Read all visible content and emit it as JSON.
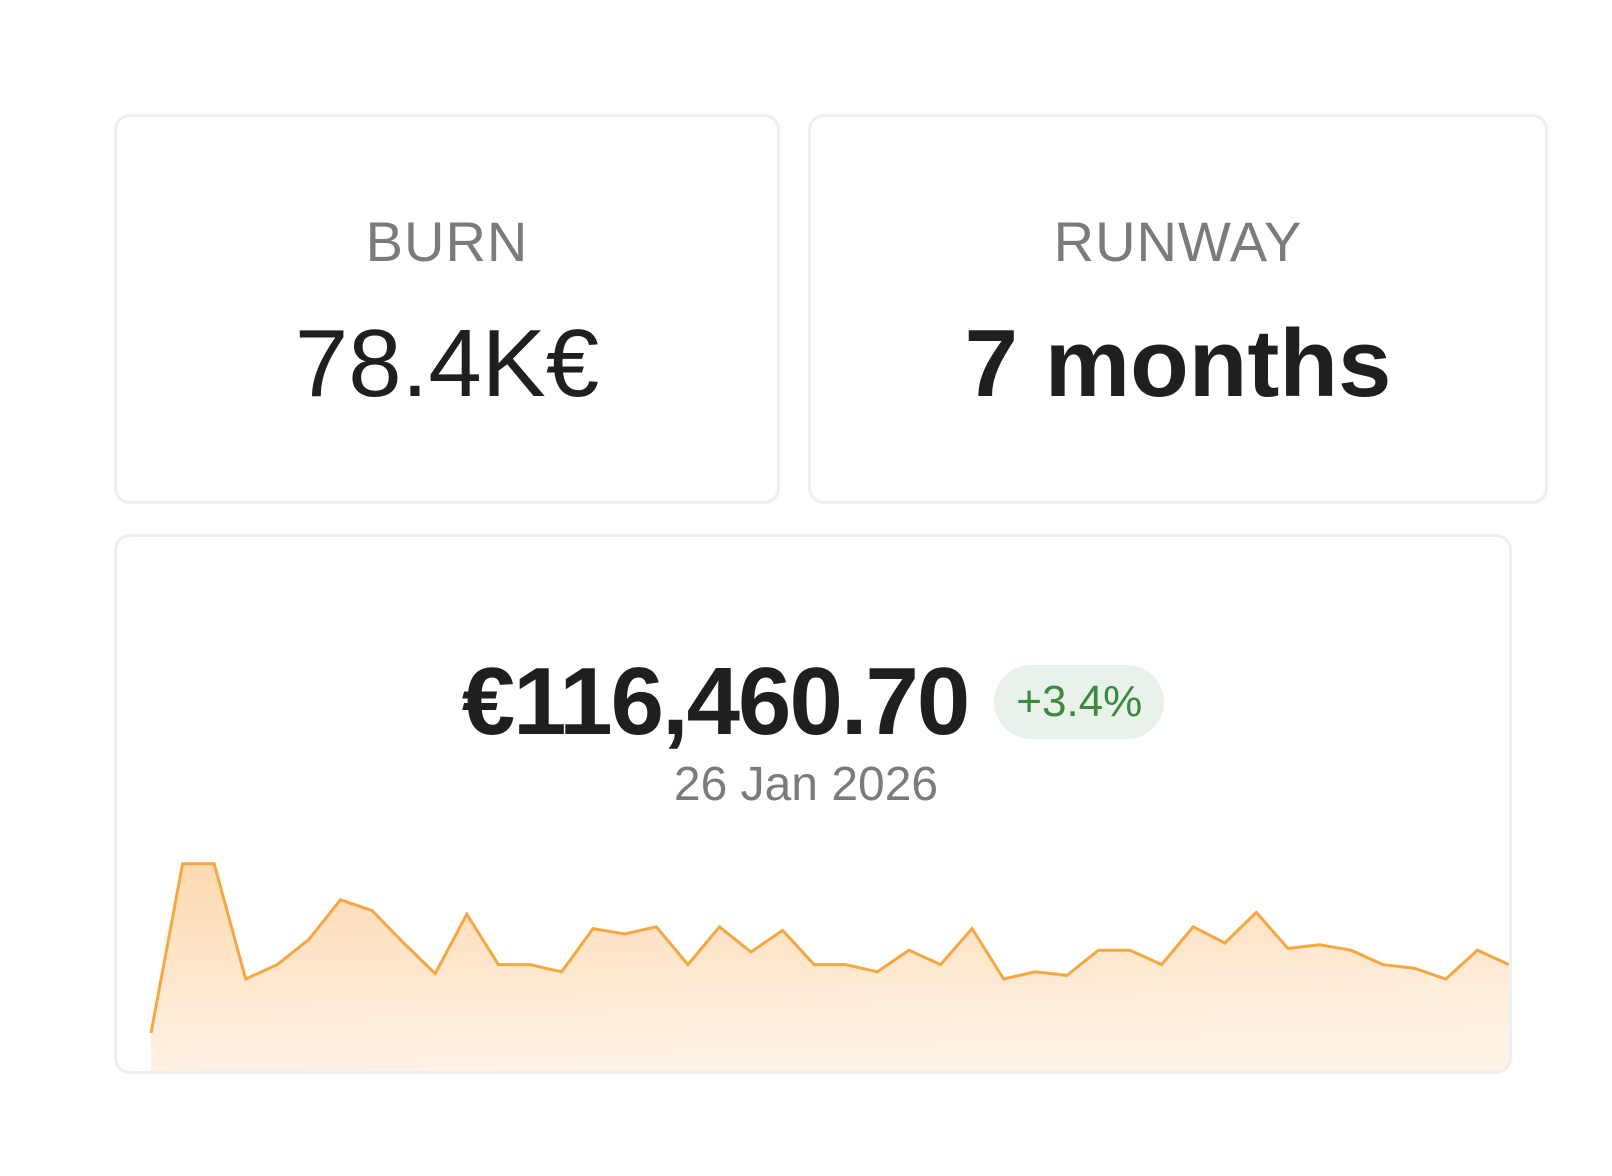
{
  "burn": {
    "label": "BURN",
    "value": "78.4K€"
  },
  "runway": {
    "label": "RUNWAY",
    "value": "7 months"
  },
  "balance": {
    "amount": "€116,460.70",
    "change": "+3.4%",
    "date": "26 Jan 2026"
  },
  "colors": {
    "line": "#f5a742",
    "fill_top": "#fdd9b0",
    "fill_bottom": "#fff3e6",
    "badge_bg": "#e9f2ea",
    "badge_text": "#3c8a3f"
  },
  "chart_data": {
    "type": "area",
    "title": "",
    "xlabel": "",
    "ylabel": "",
    "grid": false,
    "ylim": [
      0,
      100
    ],
    "series": [
      {
        "values": [
          0,
          94,
          94,
          30,
          38,
          52,
          74,
          68,
          50,
          33,
          66,
          38,
          38,
          34,
          58,
          55,
          59,
          38,
          59,
          45,
          57,
          38,
          38,
          34,
          46,
          38,
          58,
          30,
          34,
          32,
          46,
          46,
          38,
          59,
          50,
          67,
          47,
          49,
          46,
          38,
          36,
          30,
          46,
          38
        ]
      }
    ]
  }
}
